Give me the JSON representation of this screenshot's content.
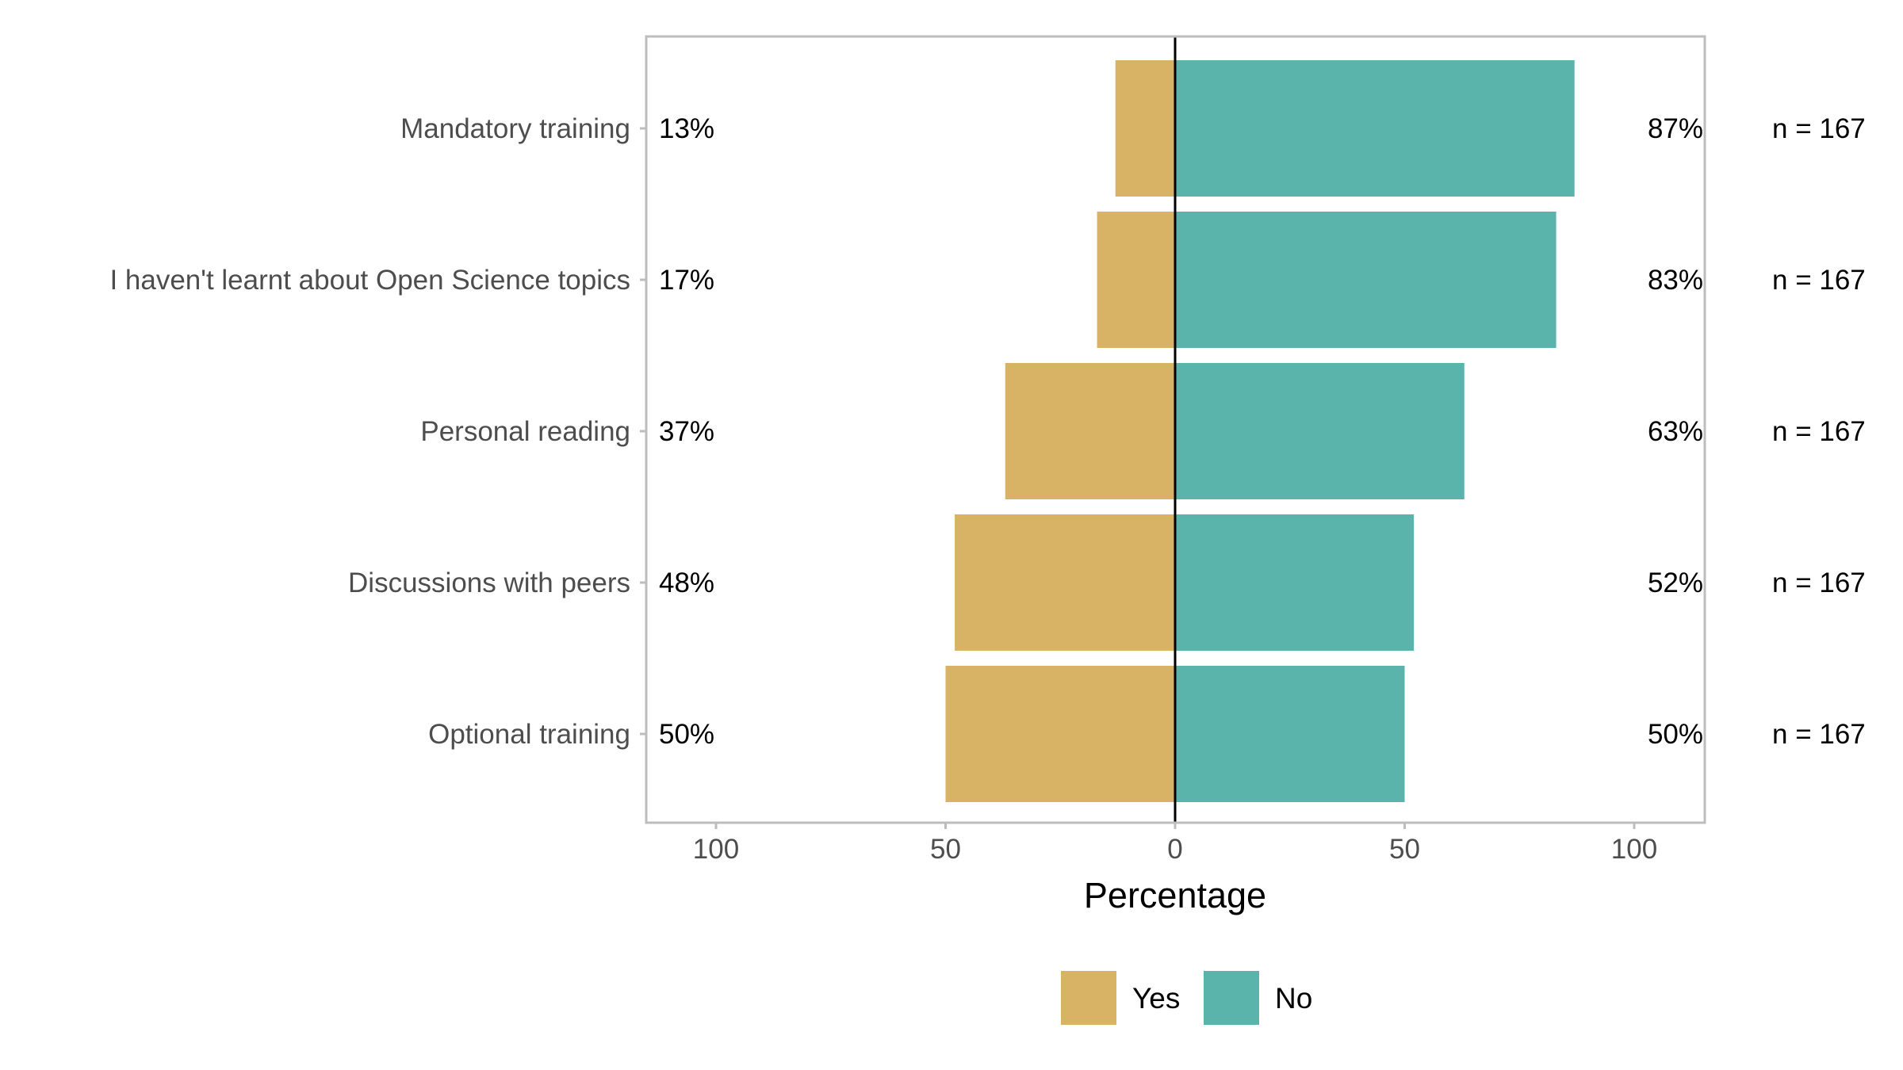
{
  "chart_data": {
    "type": "bar",
    "orientation": "horizontal-diverging",
    "categories": [
      "Mandatory training",
      "I haven't learnt about Open Science topics",
      "Personal reading",
      "Discussions with peers",
      "Optional training"
    ],
    "series": [
      {
        "name": "Yes",
        "color": "#d8b365",
        "values": [
          13,
          17,
          37,
          48,
          50
        ],
        "labels": [
          "13%",
          "17%",
          "37%",
          "48%",
          "50%"
        ]
      },
      {
        "name": "No",
        "color": "#5ab4ac",
        "values": [
          87,
          83,
          63,
          52,
          50
        ],
        "labels": [
          "87%",
          "83%",
          "63%",
          "52%",
          "50%"
        ]
      }
    ],
    "n_labels": [
      "n = 167",
      "n = 167",
      "n = 167",
      "n = 167",
      "n = 167"
    ],
    "xlabel": "Percentage",
    "ylabel": "",
    "title": "",
    "xlim": [
      -100,
      100
    ],
    "x_ticks": [
      -100,
      -50,
      0,
      50,
      100
    ],
    "x_tick_labels": [
      "100",
      "50",
      "0",
      "50",
      "100"
    ],
    "grid": false,
    "legend": {
      "position": "bottom",
      "entries": [
        "Yes",
        "No"
      ]
    },
    "panel_border_color": "#bdbdbd",
    "zero_line_color": "#000000"
  }
}
